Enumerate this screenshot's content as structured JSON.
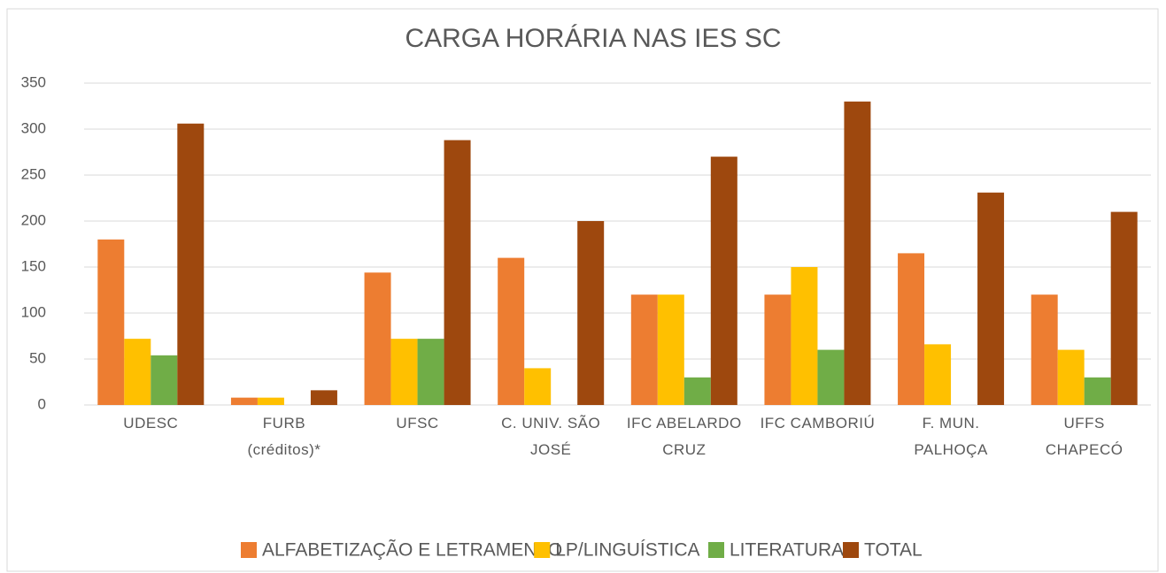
{
  "chart_data": {
    "type": "bar",
    "title": "CARGA HORÁRIA NAS IES SC",
    "categories": [
      "UDESC",
      "FURB (créditos)*",
      "UFSC",
      "C. UNIV. SÃO JOSÉ",
      "IFC ABELARDO CRUZ",
      "IFC CAMBORIÚ",
      "F. MUN. PALHOÇA",
      "UFFS CHAPECÓ"
    ],
    "series": [
      {
        "name": "ALFABETIZAÇÃO E LETRAMENTO",
        "color": "#ED7D31",
        "values": [
          180,
          8,
          144,
          160,
          120,
          120,
          165,
          120
        ]
      },
      {
        "name": "LP/LINGUÍSTICA",
        "color": "#FFC000",
        "values": [
          72,
          8,
          72,
          40,
          120,
          150,
          66,
          60
        ]
      },
      {
        "name": "LITERATURA",
        "color": "#70AD47",
        "values": [
          54,
          null,
          72,
          null,
          30,
          60,
          null,
          30
        ]
      },
      {
        "name": "TOTAL",
        "color": "#9E480E",
        "values": [
          306,
          16,
          288,
          200,
          270,
          330,
          231,
          210
        ]
      }
    ],
    "ylim": [
      0,
      350
    ],
    "yticks": [
      0,
      50,
      100,
      150,
      200,
      250,
      300,
      350
    ],
    "grid": true,
    "legend": "bottom"
  }
}
